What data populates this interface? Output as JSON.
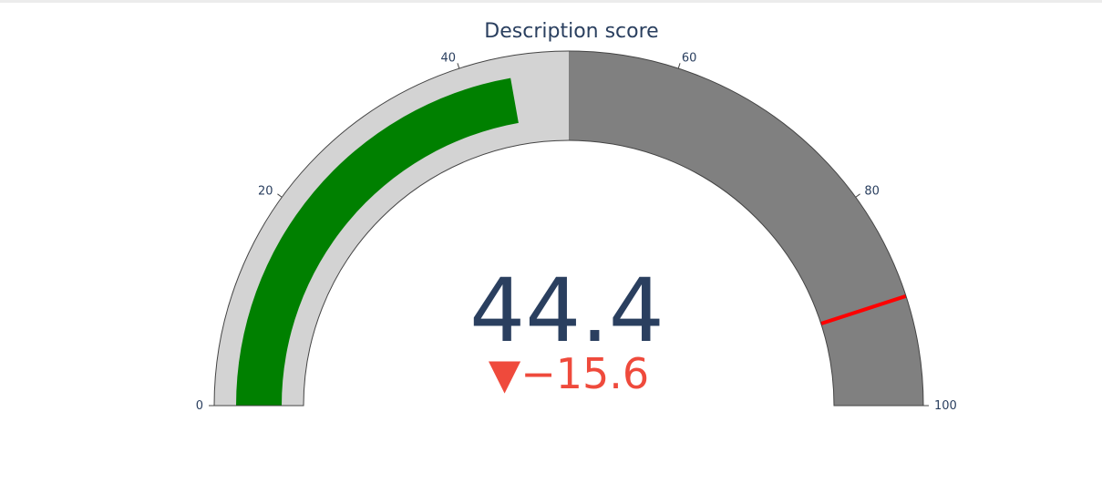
{
  "chart_data": {
    "type": "gauge",
    "title": "Description score",
    "value": 44.4,
    "value_text": "44.4",
    "delta": {
      "value": -15.6,
      "text": "−15.6",
      "symbol": "▼",
      "color": "#ef4a3c"
    },
    "axis": {
      "range": [
        0,
        100
      ],
      "tickvals": [
        0,
        20,
        40,
        60,
        80,
        100
      ],
      "ticktext": [
        "0",
        "20",
        "40",
        "60",
        "80",
        "100"
      ]
    },
    "bar": {
      "value": 44.4,
      "color": "#008000"
    },
    "steps": [
      {
        "range": [
          0,
          50
        ],
        "color": "#d3d3d3"
      },
      {
        "range": [
          50,
          100
        ],
        "color": "#808080"
      }
    ],
    "threshold": {
      "value": 90,
      "color": "#ff0000"
    },
    "colors": {
      "title": "#2a3f5f",
      "number": "#2a3f5f",
      "border": "#444444"
    }
  }
}
